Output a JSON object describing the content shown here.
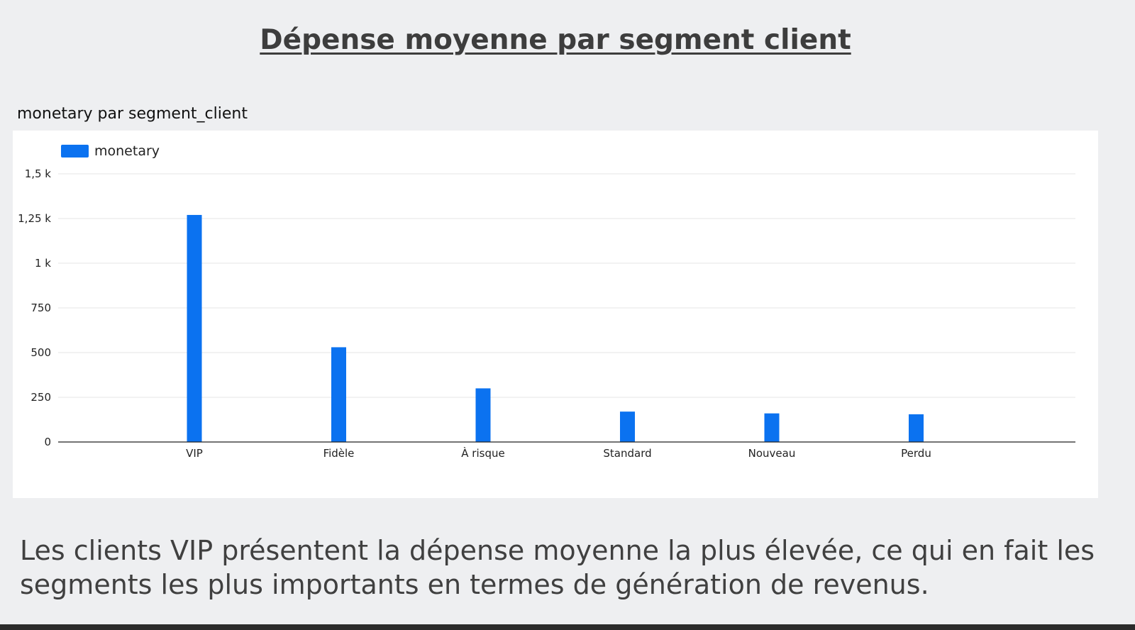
{
  "page": {
    "title": "Dépense moyenne par segment client",
    "caption": "Les clients VIP présentent la dépense moyenne la plus élevée, ce qui en fait les segments les plus importants en termes de génération de revenus."
  },
  "chart_data": {
    "type": "bar",
    "title": "monetary par segment_client",
    "xlabel": "",
    "ylabel": "",
    "categories": [
      "VIP",
      "Fidèle",
      "À risque",
      "Standard",
      "Nouveau",
      "Perdu"
    ],
    "series": [
      {
        "name": "monetary",
        "values": [
          1270,
          530,
          300,
          170,
          160,
          155
        ],
        "color": "#0b72f0"
      }
    ],
    "ylim": [
      0,
      1500
    ],
    "yticks": [
      0,
      250,
      500,
      750,
      1000,
      1250,
      1500
    ],
    "ytick_labels": [
      "0",
      "250",
      "500",
      "750",
      "1 k",
      "1,25 k",
      "1,5 k"
    ],
    "grid": true,
    "legend": "top-left"
  }
}
